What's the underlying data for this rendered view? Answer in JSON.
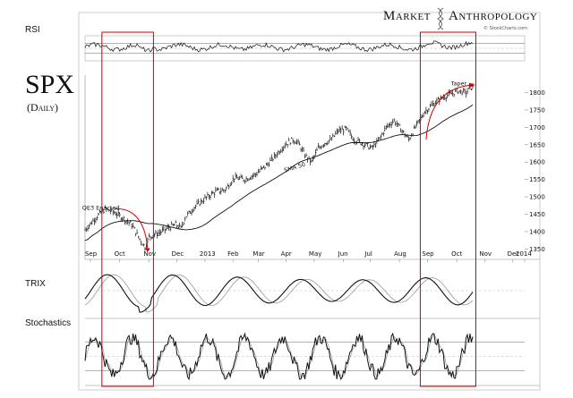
{
  "header": {
    "brand_left": "Market",
    "brand_right": "Anthropology",
    "credit": "© StockCharts.com"
  },
  "chart_data": [
    {
      "type": "line",
      "panel": "RSI",
      "title": "RSI",
      "ylim": [
        0,
        100
      ],
      "reference_lines": [
        30,
        50,
        70
      ],
      "x_index_range": [
        0,
        330
      ]
    },
    {
      "type": "bar",
      "panel": "price",
      "title": "SPX",
      "subtitle": "(Daily)",
      "ylim": [
        1320,
        1840
      ],
      "y_ticks": [
        1350,
        1400,
        1450,
        1500,
        1550,
        1600,
        1650,
        1700,
        1750,
        1800
      ],
      "x_tick_labels": [
        "Sep",
        "Oct",
        "Nov",
        "Dec",
        "2013",
        "Feb",
        "Mar",
        "Apr",
        "May",
        "Jun",
        "Jul",
        "Aug",
        "Sep",
        "Oct",
        "Nov",
        "Dec",
        "2014"
      ],
      "price_anchors": [
        [
          0,
          1405
        ],
        [
          8,
          1440
        ],
        [
          15,
          1465
        ],
        [
          22,
          1455
        ],
        [
          28,
          1440
        ],
        [
          35,
          1420
        ],
        [
          40,
          1385
        ],
        [
          45,
          1355
        ],
        [
          48,
          1385
        ],
        [
          55,
          1395
        ],
        [
          62,
          1410
        ],
        [
          68,
          1420
        ],
        [
          72,
          1410
        ],
        [
          75,
          1440
        ],
        [
          82,
          1470
        ],
        [
          90,
          1495
        ],
        [
          98,
          1515
        ],
        [
          105,
          1520
        ],
        [
          112,
          1555
        ],
        [
          120,
          1550
        ],
        [
          128,
          1565
        ],
        [
          136,
          1590
        ],
        [
          142,
          1615
        ],
        [
          150,
          1650
        ],
        [
          156,
          1665
        ],
        [
          160,
          1655
        ],
        [
          165,
          1620
        ],
        [
          170,
          1600
        ],
        [
          175,
          1640
        ],
        [
          180,
          1655
        ],
        [
          185,
          1665
        ],
        [
          190,
          1690
        ],
        [
          196,
          1695
        ],
        [
          202,
          1665
        ],
        [
          208,
          1655
        ],
        [
          215,
          1640
        ],
        [
          220,
          1660
        ],
        [
          226,
          1700
        ],
        [
          232,
          1720
        ],
        [
          238,
          1690
        ],
        [
          243,
          1665
        ],
        [
          248,
          1700
        ],
        [
          255,
          1745
        ],
        [
          262,
          1770
        ],
        [
          268,
          1785
        ],
        [
          274,
          1795
        ],
        [
          280,
          1805
        ],
        [
          286,
          1800
        ],
        [
          290,
          1815
        ]
      ],
      "sma_label": "SMA 50",
      "annotations": [
        {
          "text": "QE3 Enacted",
          "x_index": 22,
          "y": 1460
        },
        {
          "text": "Taper",
          "x_index": 284,
          "y": 1815
        }
      ],
      "highlight_windows": [
        {
          "start_index": 14,
          "end_index": 50
        },
        {
          "start_index": 253,
          "end_index": 292
        }
      ]
    },
    {
      "type": "line",
      "panel": "TRIX",
      "title": "TRIX",
      "series": [
        {
          "values": "signal"
        },
        {
          "values": "trix"
        }
      ]
    },
    {
      "type": "line",
      "panel": "Stochastics",
      "title": "Stochastics",
      "ylim": [
        0,
        100
      ],
      "reference_lines": [
        20,
        50,
        80
      ]
    }
  ]
}
